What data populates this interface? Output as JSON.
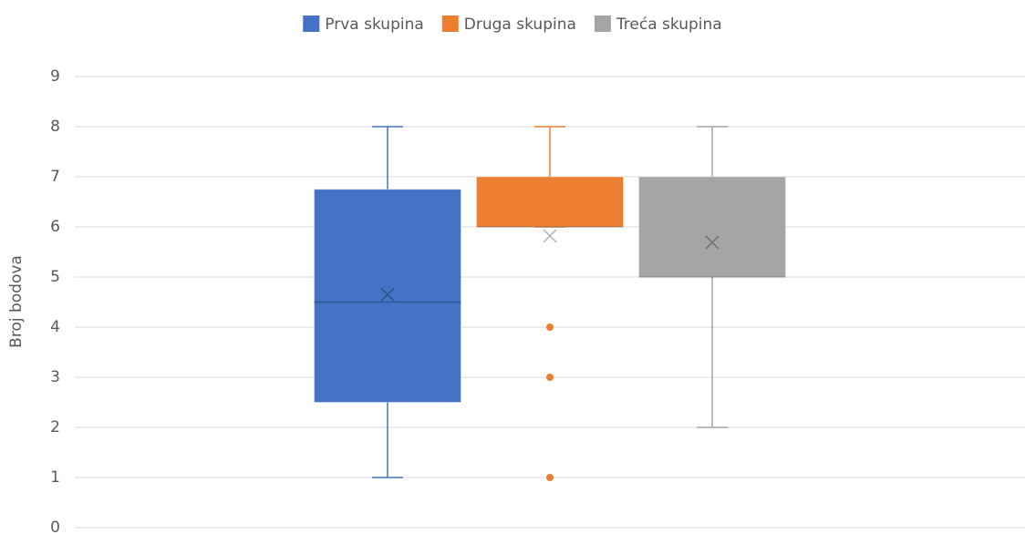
{
  "chart_data": {
    "type": "box",
    "y_label": "Broj bodova",
    "ylim": [
      0,
      9
    ],
    "yticks": [
      0,
      1,
      2,
      3,
      4,
      5,
      6,
      7,
      8,
      9
    ],
    "grid": true,
    "legend": "top",
    "series": [
      {
        "name": "Prva skupina",
        "color": "#4472c4",
        "min": 1,
        "q1": 2.5,
        "median": 4.5,
        "q3": 6.75,
        "max": 8,
        "mean": 4.65,
        "outliers": []
      },
      {
        "name": "Druga skupina",
        "color": "#ed7d31",
        "min": 6,
        "q1": 6,
        "median": 6,
        "q3": 7,
        "max": 8,
        "mean": 5.82,
        "outliers": [
          4,
          3,
          1
        ]
      },
      {
        "name": "Treća skupina",
        "color": "#a5a5a5",
        "min": 2,
        "q1": 5,
        "median": 5,
        "q3": 7,
        "max": 8,
        "mean": 5.69,
        "outliers": []
      }
    ]
  }
}
